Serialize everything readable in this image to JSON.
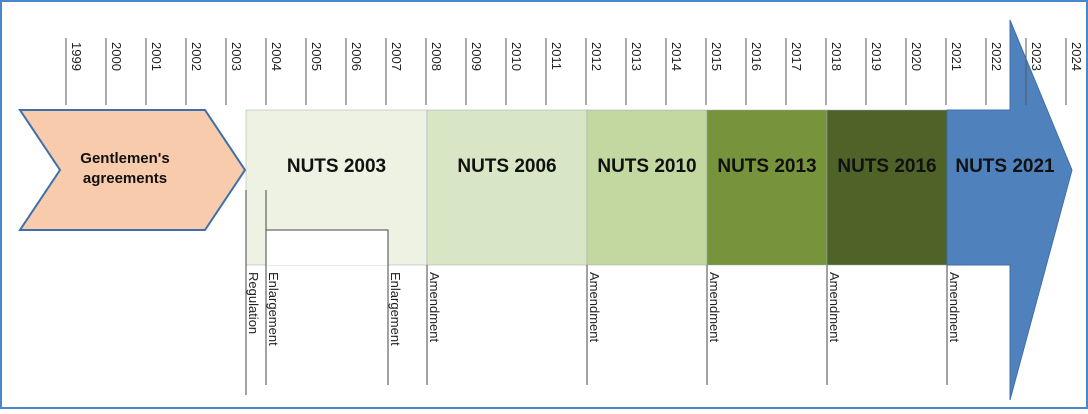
{
  "timeline": {
    "years": [
      "1999",
      "2000",
      "2001",
      "2002",
      "2003",
      "2004",
      "2005",
      "2006",
      "2007",
      "2008",
      "2009",
      "2010",
      "2011",
      "2012",
      "2013",
      "2014",
      "2015",
      "2016",
      "2017",
      "2018",
      "2019",
      "2020",
      "2021",
      "2022",
      "2023",
      "2024"
    ],
    "start": {
      "label": "Gentlemen's agreements"
    },
    "segments": [
      {
        "label": "NUTS 2003",
        "color": "#eef2e3"
      },
      {
        "label": "NUTS 2006",
        "color": "#d9e6c5"
      },
      {
        "label": "NUTS 2010",
        "color": "#c3d8a0"
      },
      {
        "label": "NUTS 2013",
        "color": "#77933c"
      },
      {
        "label": "NUTS 2016",
        "color": "#4f6228"
      },
      {
        "label": "NUTS 2021",
        "color": "#4f81bd"
      }
    ],
    "events": [
      "Regulation",
      "Enlargement",
      "Enlargement",
      "Amendment",
      "Amendment",
      "Amendment",
      "Amendment",
      "Amendment"
    ]
  }
}
